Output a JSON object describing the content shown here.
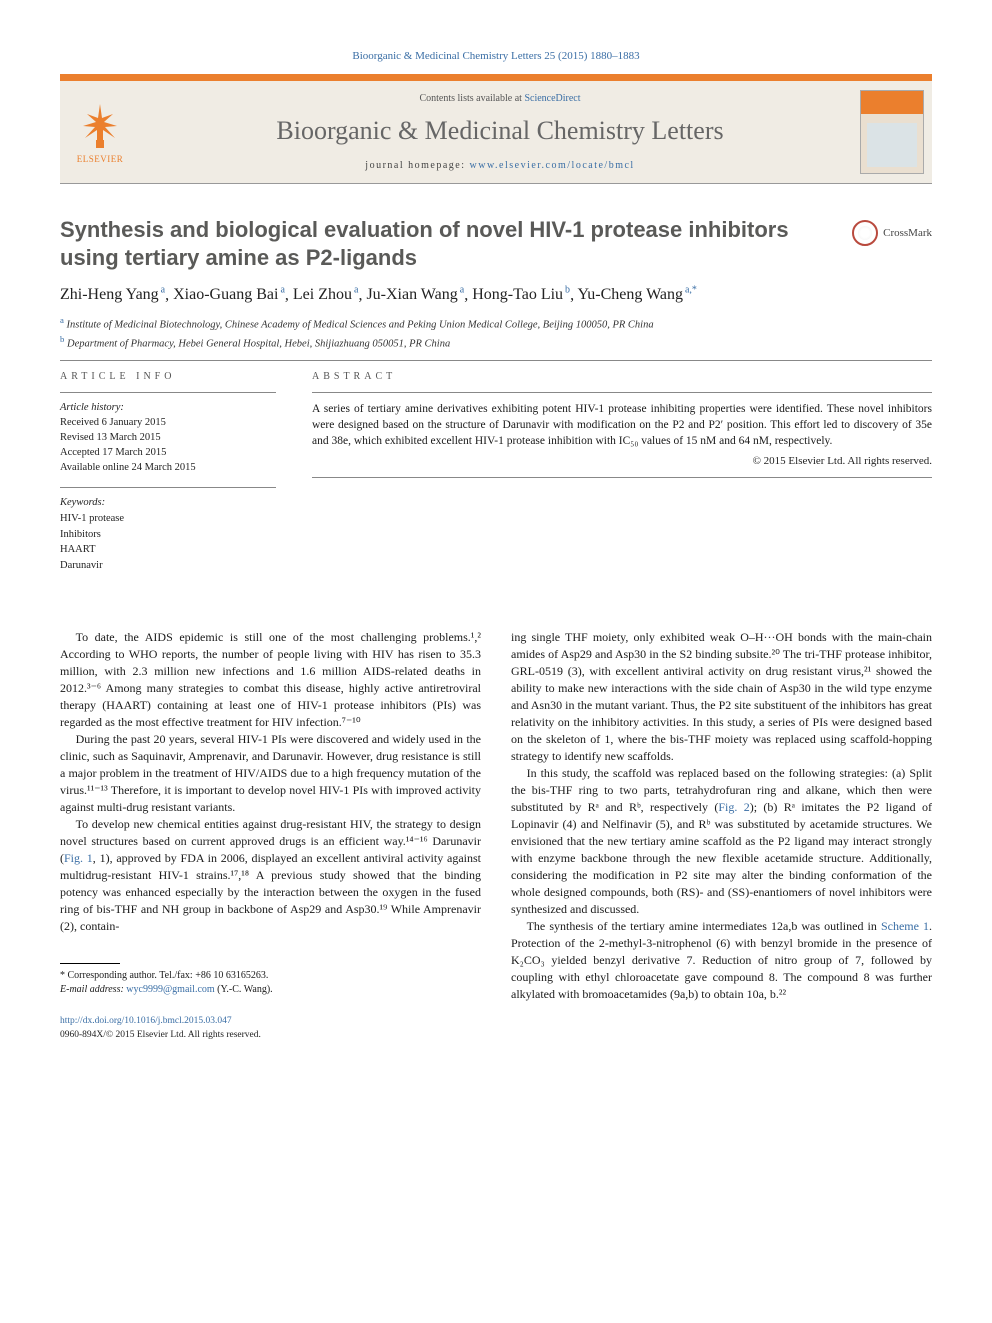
{
  "journal_ref": "Bioorganic & Medicinal Chemistry Letters 25 (2015) 1880–1883",
  "header": {
    "contents_prefix": "Contents lists available at ",
    "contents_link": "ScienceDirect",
    "journal_name": "Bioorganic & Medicinal Chemistry Letters",
    "homepage_label": "journal homepage: ",
    "homepage_url": "www.elsevier.com/locate/bmcl",
    "elsevier_label": "ELSEVIER"
  },
  "crossmark_label": "CrossMark",
  "title": "Synthesis and biological evaluation of novel HIV-1 protease inhibitors using tertiary amine as P2-ligands",
  "authors": [
    {
      "name": "Zhi-Heng Yang",
      "aff": "a"
    },
    {
      "name": "Xiao-Guang Bai",
      "aff": "a"
    },
    {
      "name": "Lei Zhou",
      "aff": "a"
    },
    {
      "name": "Ju-Xian Wang",
      "aff": "a"
    },
    {
      "name": "Hong-Tao Liu",
      "aff": "b"
    },
    {
      "name": "Yu-Cheng Wang",
      "aff": "a,*"
    }
  ],
  "affiliations": {
    "a": "Institute of Medicinal Biotechnology, Chinese Academy of Medical Sciences and Peking Union Medical College, Beijing 100050, PR China",
    "b": "Department of Pharmacy, Hebei General Hospital, Hebei, Shijiazhuang 050051, PR China"
  },
  "info": {
    "section_label": "ARTICLE INFO",
    "history_label": "Article history:",
    "history": [
      "Received 6 January 2015",
      "Revised 13 March 2015",
      "Accepted 17 March 2015",
      "Available online 24 March 2015"
    ],
    "keywords_label": "Keywords:",
    "keywords": [
      "HIV-1 protease",
      "Inhibitors",
      "HAART",
      "Darunavir"
    ]
  },
  "abstract": {
    "section_label": "ABSTRACT",
    "text": "A series of tertiary amine derivatives exhibiting potent HIV-1 protease inhibiting properties were identified. These novel inhibitors were designed based on the structure of Darunavir with modification on the P2 and P2′ position. This effort led to discovery of 35e and 38e, which exhibited excellent HIV-1 protease inhibition with IC₅₀ values of 15 nM and 64 nM, respectively.",
    "copyright": "© 2015 Elsevier Ltd. All rights reserved."
  },
  "body": {
    "p1": "To date, the AIDS epidemic is still one of the most challenging problems.¹,² According to WHO reports, the number of people living with HIV has risen to 35.3 million, with 2.3 million new infections and 1.6 million AIDS-related deaths in 2012.³⁻⁶ Among many strategies to combat this disease, highly active antiretroviral therapy (HAART) containing at least one of HIV-1 protease inhibitors (PIs) was regarded as the most effective treatment for HIV infection.⁷⁻¹⁰",
    "p2": "During the past 20 years, several HIV-1 PIs were discovered and widely used in the clinic, such as Saquinavir, Amprenavir, and Darunavir. However, drug resistance is still a major problem in the treatment of HIV/AIDS due to a high frequency mutation of the virus.¹¹⁻¹³ Therefore, it is important to develop novel HIV-1 PIs with improved activity against multi-drug resistant variants.",
    "p3a": "To develop new chemical entities against drug-resistant HIV, the strategy to design novel structures based on current approved drugs is an efficient way.¹⁴⁻¹⁶ Darunavir (",
    "p3_fig": "Fig. 1",
    "p3b": ", 1), approved by FDA in 2006, displayed an excellent antiviral activity against multidrug-resistant HIV-1 strains.¹⁷,¹⁸ A previous study showed that the binding potency was enhanced especially by the interaction between the oxygen in the fused ring of bis-THF and NH group in backbone of Asp29 and Asp30.¹⁹ While Amprenavir (2), contain-",
    "p4": "ing single THF moiety, only exhibited weak O–H···OH bonds with the main-chain amides of Asp29 and Asp30 in the S2 binding subsite.²⁰ The tri-THF protease inhibitor, GRL-0519 (3), with excellent antiviral activity on drug resistant virus,²¹ showed the ability to make new interactions with the side chain of Asp30 in the wild type enzyme and Asn30 in the mutant variant. Thus, the P2 site substituent of the inhibitors has great relativity on the inhibitory activities. In this study, a series of PIs were designed based on the skeleton of 1, where the bis-THF moiety was replaced using scaffold-hopping strategy to identify new scaffolds.",
    "p5a": "In this study, the scaffold was replaced based on the following strategies: (a) Split the bis-THF ring to two parts, tetrahydrofuran ring and alkane, which then were substituted by Rᵃ and Rᵇ, respectively (",
    "p5_fig": "Fig. 2",
    "p5b": "); (b) Rᵃ imitates the P2 ligand of Lopinavir (4) and Nelfinavir (5), and Rᵇ was substituted by acetamide structures. We envisioned that the new tertiary amine scaffold as the P2 ligand may interact strongly with enzyme backbone through the new flexible acetamide structure. Additionally, considering the modification in P2 site may alter the binding conformation of the whole designed compounds, both (RS)- and (SS)-enantiomers of novel inhibitors were synthesized and discussed.",
    "p6a": "The synthesis of the tertiary amine intermediates 12a,b was outlined in ",
    "p6_scheme": "Scheme 1",
    "p6b": ". Protection of the 2-methyl-3-nitrophenol (6) with benzyl bromide in the presence of K₂CO₃ yielded benzyl derivative 7. Reduction of nitro group of 7, followed by coupling with ethyl chloroacetate gave compound 8. The compound 8 was further alkylated with bromoacetamides (9a,b) to obtain 10a, b.²²"
  },
  "footnotes": {
    "corr": "* Corresponding author. Tel./fax: +86 10 63165263.",
    "email_label": "E-mail address: ",
    "email": "wyc9999@gmail.com",
    "email_owner": " (Y.-C. Wang)."
  },
  "footer": {
    "doi_url": "http://dx.doi.org/10.1016/j.bmcl.2015.03.047",
    "issn_copy": "0960-894X/© 2015 Elsevier Ltd. All rights reserved."
  },
  "colors": {
    "accent_orange": "#eb7f2d",
    "link_blue": "#3a6ea5",
    "title_gray": "#5a5a58",
    "header_bg": "#f0ece4"
  }
}
